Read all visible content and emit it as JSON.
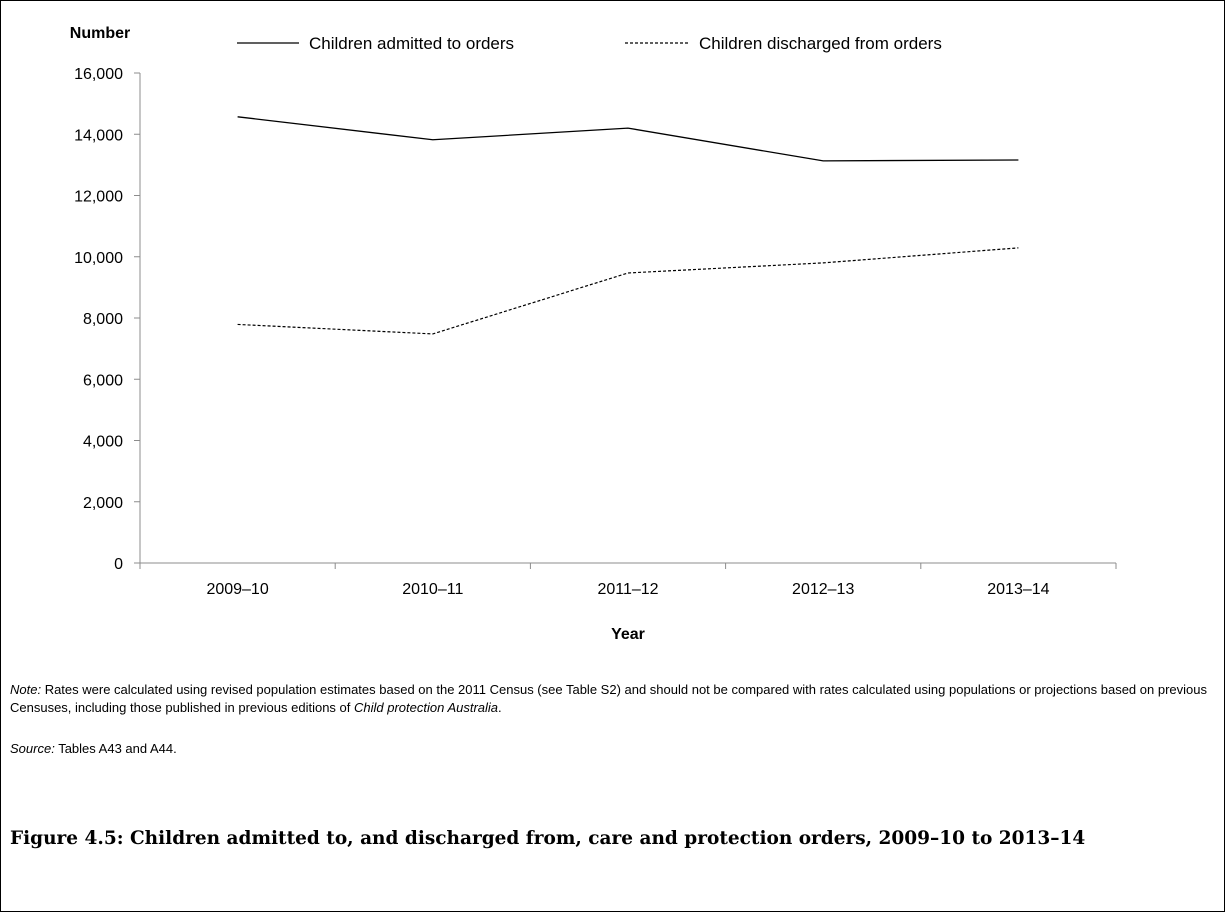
{
  "chart_data": {
    "type": "line",
    "ylabel": "Number",
    "xlabel": "Year",
    "categories": [
      "2009–10",
      "2010–11",
      "2011–12",
      "2012–13",
      "2013–14"
    ],
    "ylim": [
      0,
      16000
    ],
    "yticks": [
      0,
      2000,
      4000,
      6000,
      8000,
      10000,
      12000,
      14000,
      16000
    ],
    "ytick_labels": [
      "0",
      "2,000",
      "4,000",
      "6,000",
      "8,000",
      "10,000",
      "12,000",
      "14,000",
      "16,000"
    ],
    "grid": false,
    "legend_position": "top",
    "series": [
      {
        "name": "Children admitted to orders",
        "style": "solid",
        "values": [
          14570,
          13820,
          14200,
          13130,
          13160
        ]
      },
      {
        "name": "Children discharged from orders",
        "style": "dashed",
        "values": [
          7790,
          7480,
          9470,
          9800,
          10290
        ]
      }
    ]
  },
  "note": {
    "label": "Note:",
    "text_1": " Rates were calculated using revised population estimates based on the 2011 Census (see Table S2) and should not be compared with rates calculated using populations or projections based on previous Censuses, including those published in previous editions of ",
    "italic_title": "Child protection Australia",
    "text_2": "."
  },
  "source": {
    "label": "Source:",
    "text": " Tables A43 and A44."
  },
  "caption": "Figure 4.5: Children admitted to, and discharged from, care and protection orders, 2009–10 to 2013–14"
}
